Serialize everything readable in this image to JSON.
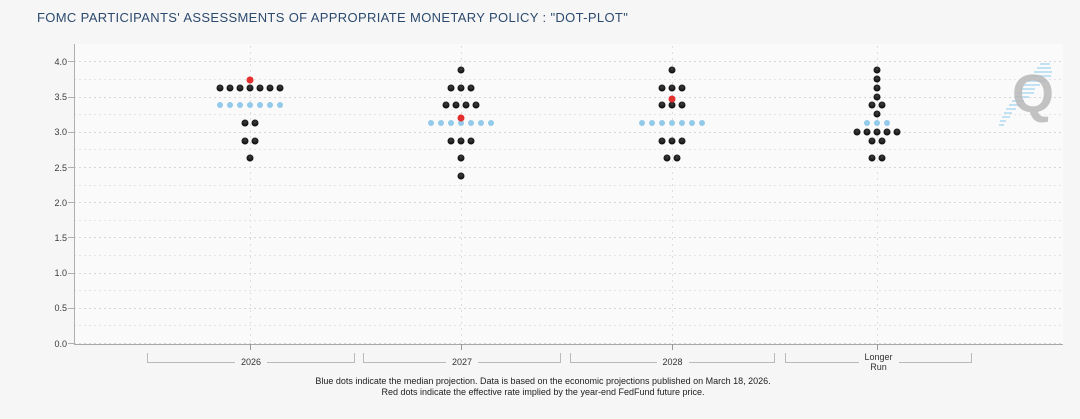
{
  "title": "FOMC PARTICIPANTS' ASSESSMENTS OF APPROPRIATE MONETARY POLICY : \"DOT-PLOT\"",
  "watermark": {
    "letter": "Q"
  },
  "footer": {
    "line1": "Blue dots indicate the median projection. Data is based on the economic projections published on March 18, 2026.",
    "line2": "Red dots indicate the effective rate implied by the year-end FedFund future price."
  },
  "colors": {
    "title": "#2c4a6e",
    "projection_dot": "#161616",
    "median_dot": "#94cae9",
    "fedfund_dot": "#e3302e",
    "median_note": "blue",
    "fedfund_note": "red"
  },
  "chart_data": {
    "type": "scatter",
    "title": "FOMC PARTICIPANTS' ASSESSMENTS OF APPROPRIATE MONETARY POLICY : \"DOT-PLOT\"",
    "ylabel": "",
    "ylim": [
      0.0,
      4.0
    ],
    "ytick_step": 0.5,
    "yminor_step": 0.25,
    "grid": true,
    "categories": [
      "2026",
      "2027",
      "2028",
      "Longer\nRun"
    ],
    "series": [
      {
        "name": "participant_projections",
        "style": "black",
        "columns": [
          [
            {
              "rate": 3.625,
              "count": 7
            },
            {
              "rate": 3.125,
              "count": 2
            },
            {
              "rate": 2.875,
              "count": 2
            },
            {
              "rate": 2.625,
              "count": 1
            }
          ],
          [
            {
              "rate": 3.875,
              "count": 1
            },
            {
              "rate": 3.625,
              "count": 3
            },
            {
              "rate": 3.375,
              "count": 4
            },
            {
              "rate": 2.875,
              "count": 3
            },
            {
              "rate": 2.625,
              "count": 1
            },
            {
              "rate": 2.375,
              "count": 1
            }
          ],
          [
            {
              "rate": 3.875,
              "count": 1
            },
            {
              "rate": 3.625,
              "count": 3
            },
            {
              "rate": 3.375,
              "count": 3
            },
            {
              "rate": 2.875,
              "count": 3
            },
            {
              "rate": 2.625,
              "count": 2
            }
          ],
          [
            {
              "rate": 3.875,
              "count": 1
            },
            {
              "rate": 3.75,
              "count": 1
            },
            {
              "rate": 3.625,
              "count": 1
            },
            {
              "rate": 3.5,
              "count": 1
            },
            {
              "rate": 3.375,
              "count": 2
            },
            {
              "rate": 3.25,
              "count": 1
            },
            {
              "rate": 3.0,
              "count": 5
            },
            {
              "rate": 2.875,
              "count": 2
            },
            {
              "rate": 2.625,
              "count": 2
            }
          ]
        ]
      },
      {
        "name": "median_projection",
        "style": "blue",
        "columns": [
          [
            {
              "rate": 3.375,
              "count": 7
            }
          ],
          [
            {
              "rate": 3.125,
              "count": 7
            }
          ],
          [
            {
              "rate": 3.125,
              "count": 7
            }
          ],
          [
            {
              "rate": 3.125,
              "count": 3
            }
          ]
        ]
      },
      {
        "name": "fedfund_implied_rate",
        "style": "red",
        "columns": [
          [
            {
              "rate": 3.73,
              "count": 1
            }
          ],
          [
            {
              "rate": 3.2,
              "count": 1
            }
          ],
          [
            {
              "rate": 3.47,
              "count": 1
            }
          ],
          []
        ]
      }
    ]
  }
}
